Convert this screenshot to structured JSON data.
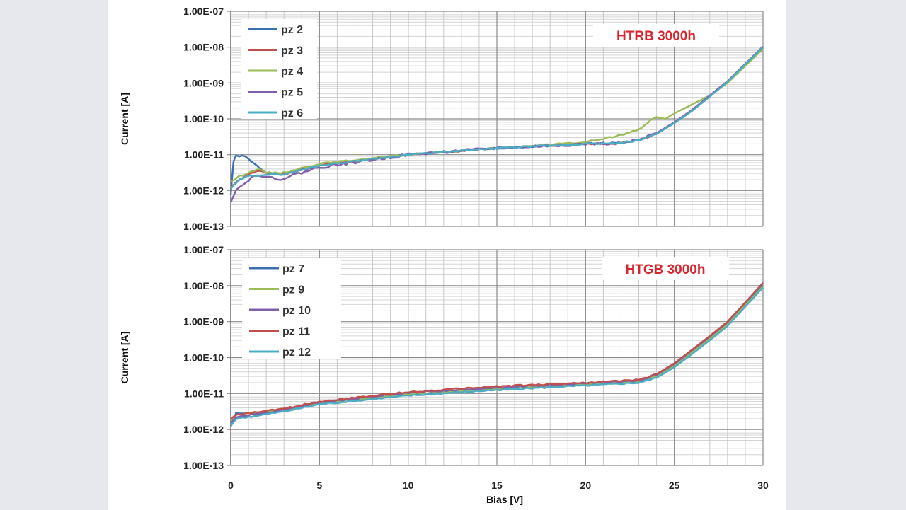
{
  "chart_data": [
    {
      "type": "line",
      "title": "",
      "annotation": "HTRB 3000h",
      "xlabel": "Bias [V]",
      "ylabel": "Current [A]",
      "xlim": [
        0,
        30
      ],
      "xticks": [
        "0",
        "5",
        "10",
        "15",
        "20",
        "25",
        "30"
      ],
      "ylim": [
        1e-13,
        1e-07
      ],
      "yscale": "log",
      "yticks": [
        "1.00E-07",
        "1.00E-08",
        "1.00E-09",
        "1.00E-10",
        "1.00E-11",
        "1.00E-12",
        "1.00E-13"
      ],
      "grid": true,
      "legend": "top-left",
      "series": [
        {
          "name": "pz 2",
          "color": "#3a70b2",
          "x": [
            0,
            0.15,
            0.3,
            0.8,
            1.3,
            2,
            3,
            5,
            10,
            15,
            20,
            22,
            23,
            24,
            25,
            26,
            27,
            28,
            30
          ],
          "log10_y": [
            -12.1,
            -11.2,
            -11.03,
            -11.05,
            -11.25,
            -11.5,
            -11.55,
            -11.3,
            -11.0,
            -10.82,
            -10.7,
            -10.68,
            -10.6,
            -10.4,
            -10.1,
            -9.75,
            -9.35,
            -8.95,
            -8.0
          ]
        },
        {
          "name": "pz 3",
          "color": "#c0504d",
          "x": [
            0,
            0.5,
            1,
            1.5,
            2,
            3,
            5,
            10,
            15,
            20,
            22,
            23,
            24,
            25,
            26,
            27,
            28,
            30
          ],
          "log10_y": [
            -11.9,
            -11.7,
            -11.55,
            -11.45,
            -11.5,
            -11.55,
            -11.3,
            -11.0,
            -10.82,
            -10.7,
            -10.68,
            -10.6,
            -10.42,
            -10.12,
            -9.78,
            -9.38,
            -8.97,
            -8.0
          ]
        },
        {
          "name": "pz 4",
          "color": "#9bbb59",
          "x": [
            0,
            0.5,
            1,
            1.5,
            2,
            3,
            5,
            10,
            15,
            20,
            21,
            22,
            22.5,
            23,
            23.5,
            24,
            24.5,
            25,
            26,
            27,
            28,
            30
          ],
          "log10_y": [
            -11.75,
            -11.6,
            -11.5,
            -11.4,
            -11.5,
            -11.5,
            -11.25,
            -11.0,
            -10.82,
            -10.65,
            -10.55,
            -10.45,
            -10.38,
            -10.3,
            -10.1,
            -9.95,
            -10.0,
            -9.85,
            -9.6,
            -9.35,
            -9.0,
            -8.05
          ]
        },
        {
          "name": "pz 5",
          "color": "#7f5fab",
          "x": [
            0,
            0.3,
            0.7,
            1,
            1.5,
            2,
            2.5,
            3,
            4,
            5,
            10,
            15,
            20,
            22,
            23,
            24,
            25,
            26,
            27,
            28,
            30
          ],
          "log10_y": [
            -12.3,
            -11.95,
            -11.85,
            -11.7,
            -11.55,
            -11.6,
            -11.7,
            -11.65,
            -11.5,
            -11.35,
            -11.0,
            -10.82,
            -10.7,
            -10.68,
            -10.6,
            -10.4,
            -10.1,
            -9.75,
            -9.35,
            -8.95,
            -7.98
          ]
        },
        {
          "name": "pz 6",
          "color": "#4bacc6",
          "x": [
            0,
            0.5,
            1,
            2,
            3,
            5,
            10,
            15,
            20,
            22,
            23,
            24,
            25,
            26,
            27,
            28,
            30
          ],
          "log10_y": [
            -11.95,
            -11.7,
            -11.6,
            -11.55,
            -11.55,
            -11.3,
            -11.0,
            -10.82,
            -10.7,
            -10.68,
            -10.6,
            -10.42,
            -10.12,
            -9.78,
            -9.38,
            -8.97,
            -8.0
          ]
        }
      ]
    },
    {
      "type": "line",
      "title": "",
      "annotation": "HTGB 3000h",
      "xlabel": "Bias [V]",
      "ylabel": "Current [A]",
      "xlim": [
        0,
        30
      ],
      "xticks": [
        "0",
        "5",
        "10",
        "15",
        "20",
        "25",
        "30"
      ],
      "ylim": [
        1e-13,
        1e-07
      ],
      "yscale": "log",
      "yticks": [
        "1.00E-07",
        "1.00E-08",
        "1.00E-09",
        "1.00E-10",
        "1.00E-11",
        "1.00E-12",
        "1.00E-13"
      ],
      "grid": true,
      "legend": "top-left",
      "series": [
        {
          "name": "pz 7",
          "color": "#3a70b2",
          "x": [
            0,
            0.3,
            1,
            3,
            5,
            10,
            15,
            20,
            23,
            24,
            25,
            26,
            27,
            28,
            30
          ],
          "log10_y": [
            -11.9,
            -11.55,
            -11.55,
            -11.45,
            -11.27,
            -11.02,
            -10.87,
            -10.75,
            -10.67,
            -10.52,
            -10.22,
            -9.85,
            -9.47,
            -9.07,
            -8.0
          ]
        },
        {
          "name": "pz 9",
          "color": "#9bbb59",
          "x": [
            0,
            0.3,
            1,
            3,
            5,
            10,
            15,
            20,
            23,
            24,
            25,
            26,
            27,
            28,
            30
          ],
          "log10_y": [
            -11.8,
            -11.6,
            -11.55,
            -11.45,
            -11.27,
            -11.02,
            -10.87,
            -10.75,
            -10.67,
            -10.52,
            -10.22,
            -9.85,
            -9.47,
            -9.07,
            -8.02
          ]
        },
        {
          "name": "pz 10",
          "color": "#7f5fab",
          "x": [
            0,
            0.3,
            1,
            3,
            5,
            10,
            15,
            20,
            23,
            24,
            25,
            26,
            27,
            28,
            30
          ],
          "log10_y": [
            -11.85,
            -11.65,
            -11.6,
            -11.45,
            -11.25,
            -10.98,
            -10.83,
            -10.72,
            -10.64,
            -10.48,
            -10.18,
            -9.8,
            -9.42,
            -9.02,
            -7.92
          ]
        },
        {
          "name": "pz 11",
          "color": "#c0504d",
          "x": [
            0,
            0.3,
            1,
            3,
            5,
            10,
            15,
            20,
            23,
            24,
            25,
            26,
            27,
            28,
            30
          ],
          "log10_y": [
            -11.7,
            -11.6,
            -11.55,
            -11.42,
            -11.22,
            -10.96,
            -10.8,
            -10.7,
            -10.62,
            -10.46,
            -10.16,
            -9.78,
            -9.4,
            -9.0,
            -7.93
          ]
        },
        {
          "name": "pz 12",
          "color": "#4bacc6",
          "x": [
            0,
            0.3,
            1,
            3,
            5,
            10,
            15,
            20,
            23,
            24,
            25,
            26,
            27,
            28,
            30
          ],
          "log10_y": [
            -11.9,
            -11.7,
            -11.65,
            -11.5,
            -11.3,
            -11.06,
            -10.9,
            -10.78,
            -10.7,
            -10.56,
            -10.27,
            -9.9,
            -9.52,
            -9.12,
            -8.05
          ]
        }
      ]
    }
  ]
}
